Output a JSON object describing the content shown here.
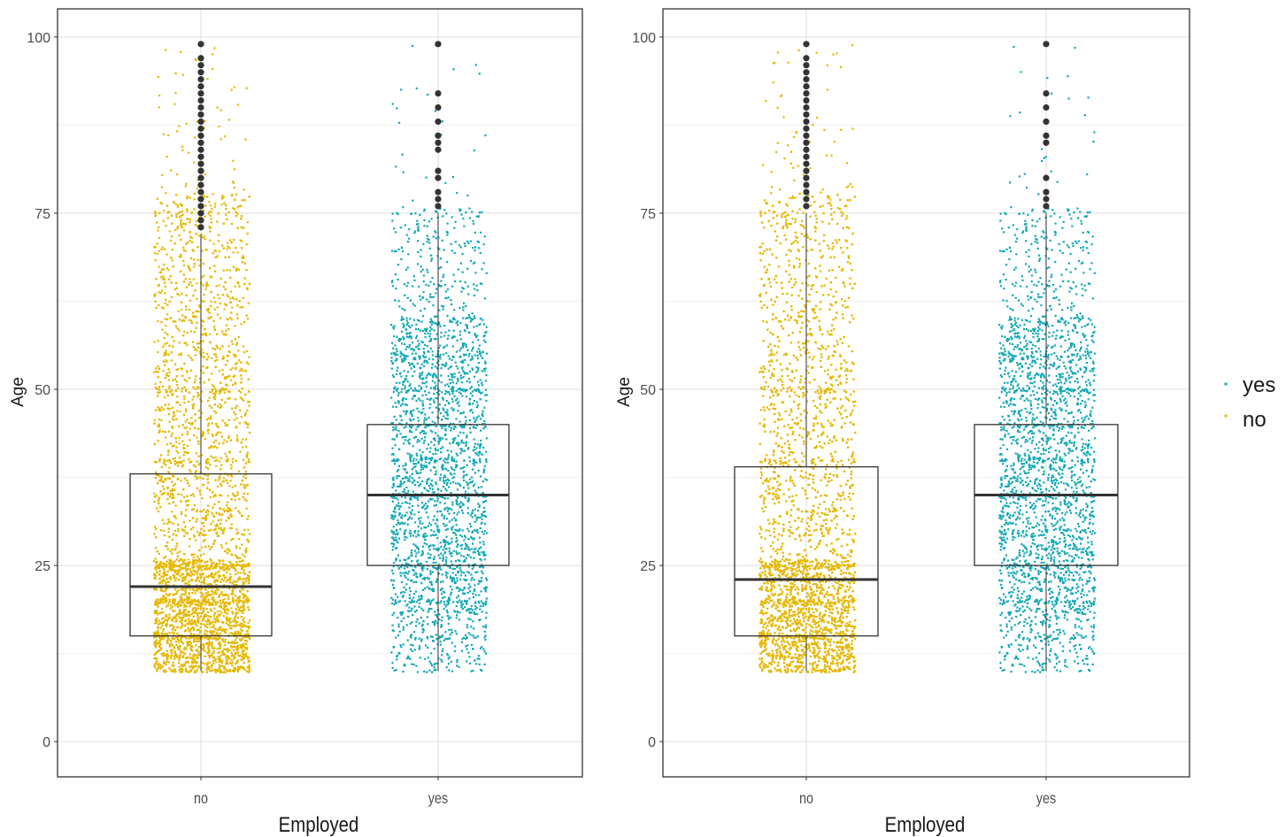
{
  "chart_data": [
    {
      "type": "box",
      "xlabel": "Employed",
      "ylabel": "Age",
      "ylim": [
        -5,
        104
      ],
      "y_ticks": [
        0,
        25,
        50,
        75,
        100
      ],
      "y_tick_labels": [
        "0",
        "25",
        "50",
        "75",
        "100"
      ],
      "categories": [
        "no",
        "yes"
      ],
      "grid": true,
      "series": [
        {
          "name": "no",
          "color": "#E6B800",
          "box": {
            "q1": 15,
            "median": 22,
            "q3": 38,
            "whisker_low": 10,
            "whisker_high": 72
          },
          "outliers": [
            73,
            74,
            75,
            76,
            77,
            78,
            79,
            80,
            81,
            82,
            83,
            84,
            85,
            86,
            87,
            88,
            89,
            90,
            91,
            92,
            93,
            94,
            95,
            96,
            97,
            99
          ],
          "jitter_range": [
            10,
            99
          ]
        },
        {
          "name": "yes",
          "color": "#12A8B5",
          "box": {
            "q1": 25,
            "median": 35,
            "q3": 45,
            "whisker_low": 10,
            "whisker_high": 75
          },
          "outliers": [
            76,
            77,
            78,
            80,
            81,
            84,
            85,
            86,
            88,
            90,
            92,
            99
          ],
          "jitter_range": [
            10,
            99
          ]
        }
      ]
    },
    {
      "type": "box",
      "xlabel": "Employed",
      "ylabel": "Age",
      "ylim": [
        -5,
        104
      ],
      "y_ticks": [
        0,
        25,
        50,
        75,
        100
      ],
      "y_tick_labels": [
        "0",
        "25",
        "50",
        "75",
        "100"
      ],
      "categories": [
        "no",
        "yes"
      ],
      "grid": true,
      "series": [
        {
          "name": "no",
          "color": "#E6B800",
          "box": {
            "q1": 15,
            "median": 23,
            "q3": 39,
            "whisker_low": 10,
            "whisker_high": 75
          },
          "outliers": [
            76,
            77,
            78,
            79,
            80,
            81,
            82,
            83,
            84,
            85,
            86,
            87,
            88,
            89,
            90,
            91,
            92,
            93,
            94,
            95,
            96,
            97,
            99
          ],
          "jitter_range": [
            10,
            99
          ]
        },
        {
          "name": "yes",
          "color": "#12A8B5",
          "box": {
            "q1": 25,
            "median": 35,
            "q3": 45,
            "whisker_low": 10,
            "whisker_high": 75
          },
          "outliers": [
            76,
            77,
            78,
            80,
            85,
            86,
            88,
            90,
            92,
            99
          ],
          "jitter_range": [
            10,
            99
          ]
        }
      ]
    }
  ],
  "legend": {
    "placement": "right",
    "items": [
      {
        "label": "yes",
        "color": "#12A8B5"
      },
      {
        "label": "no",
        "color": "#E6B800"
      }
    ]
  }
}
